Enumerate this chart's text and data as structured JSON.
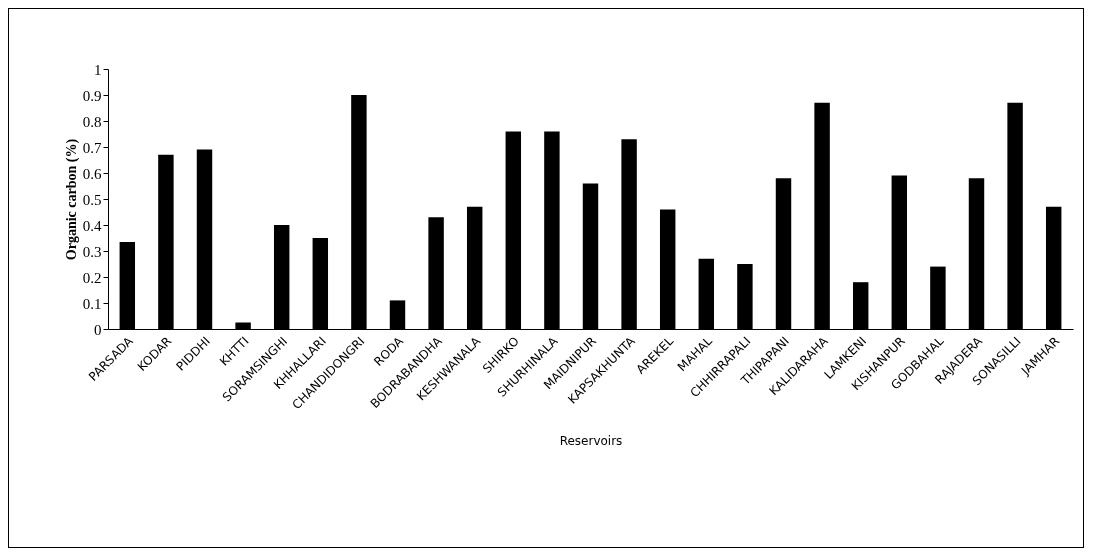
{
  "chart_data": {
    "type": "bar",
    "xlabel": "Reservoirs",
    "ylabel": "Organic carbon (%)",
    "categories": [
      "PARSADA",
      "KODAR",
      "PIDDHI",
      "KHTTI",
      "SORAMSINGHI",
      "KHHALLARI",
      "CHANDIDONGRI",
      "RODA",
      "BODRABANDHA",
      "KESHWANALA",
      "SHIRKO",
      "SHURHINALA",
      "MAIDNIPUR",
      "KAPSAKHUNTA",
      "AREKEL",
      "MAHAL",
      "CHHIRRAPALI",
      "THIPAPANI",
      "KALIDARAHA",
      "LAMKENI",
      "KISHANPUR",
      "GODBAHAL",
      "RAJADERA",
      "SONASILLI",
      "JAMHAR"
    ],
    "values": [
      0.335,
      0.67,
      0.69,
      0.025,
      0.4,
      0.35,
      0.9,
      0.11,
      0.43,
      0.47,
      0.76,
      0.76,
      0.56,
      0.73,
      0.46,
      0.27,
      0.25,
      0.58,
      0.87,
      0.18,
      0.59,
      0.24,
      0.58,
      0.87,
      0.47
    ],
    "color": "#000000",
    "ylim": [
      0,
      1
    ],
    "yticks": [
      0,
      0.1,
      0.2,
      0.3,
      0.4,
      0.5,
      0.6,
      0.7,
      0.8,
      0.9,
      1
    ],
    "grid": false
  }
}
